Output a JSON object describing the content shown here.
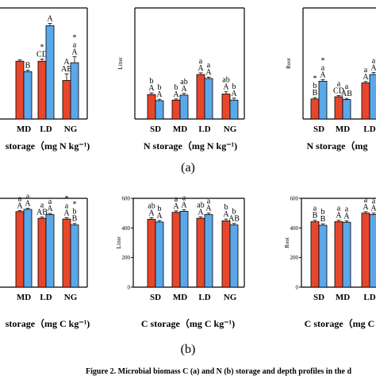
{
  "panel_labels": {
    "a": "(a)",
    "b": "(b)"
  },
  "caption": "Figure 2. Microbial biomass C (a) and N (b) storage and depth profiles in the d",
  "chart_data": [
    {
      "id": "n_left",
      "type": "bar",
      "categories": [
        "MD",
        "LD",
        "NG"
      ],
      "series": [
        {
          "values": [
            [
              7.8,
              6.6,
              8.2
            ]
          ]
        }
      ],
      "values_red": [
        7.8,
        7.8,
        5.2
      ],
      "values_blue": [
        6.4,
        12.6,
        7.6
      ],
      "errors_red": [
        0.2,
        0.3,
        0.9
      ],
      "errors_blue": [
        0.2,
        0.3,
        0.8
      ],
      "ylim": [
        0,
        15
      ],
      "xlabel": "storage（mg N kg⁻¹)",
      "annotations": [
        [
          "B",
          "*\nCD",
          "*\nA"
        ],
        [
          "",
          "A\nAB",
          "*\na\nA"
        ],
        [
          "",
          "*\nAB",
          "*\nB"
        ]
      ],
      "ann_red": [
        "",
        "*\nCD",
        "A\nAB"
      ],
      "ann_blue": [
        "B",
        "A",
        "*\na\nA"
      ],
      "ann_ng_red": "*\nAB",
      "ann_ng_blue": "*\na\nAB"
    },
    {
      "id": "n_litter",
      "type": "bar",
      "categories": [
        "SD",
        "MD",
        "LD",
        "NG"
      ],
      "values_red": [
        8.8,
        6.8,
        16.0,
        9.0
      ],
      "values_blue": [
        6.6,
        8.6,
        14.6,
        6.8
      ],
      "errors_red": [
        0.6,
        0.4,
        0.6,
        0.8
      ],
      "errors_blue": [
        0.5,
        0.6,
        0.5,
        0.7
      ],
      "ylim": [
        0,
        40
      ],
      "ylabel": "Litter",
      "xlabel": "N storage（mg N kg⁻¹)",
      "ann_red": [
        "b\nA",
        "b\nA",
        "a\nA",
        "ab\nA"
      ],
      "ann_blue": [
        "b\nA",
        "ab\nA",
        "a\nA",
        "b\nA"
      ]
    },
    {
      "id": "n_root",
      "type": "bar",
      "categories": [
        "SD",
        "MD",
        "LD"
      ],
      "values_red": [
        7.2,
        8.0,
        13.0
      ],
      "values_blue": [
        13.6,
        7.0,
        16.0
      ],
      "errors_red": [
        0.5,
        0.4,
        0.5
      ],
      "errors_blue": [
        0.6,
        0.4,
        0.7
      ],
      "ylim": [
        0,
        40
      ],
      "ylabel": "Root",
      "xlabel": "N storage（mg",
      "ann_red": [
        "*\nb\nB",
        "a\nCD",
        "a\nA"
      ],
      "ann_blue": [
        "*\na\nA",
        "a\nAB",
        "a\nA"
      ]
    },
    {
      "id": "c_left",
      "type": "bar",
      "categories": [
        "MD",
        "LD",
        "NG"
      ],
      "values_red": [
        510,
        465,
        460
      ],
      "values_blue": [
        525,
        490,
        420
      ],
      "errors_red": [
        8,
        8,
        10
      ],
      "errors_blue": [
        8,
        8,
        10
      ],
      "ylim": [
        0,
        600
      ],
      "xlabel": "storage（mg C kg⁻¹)",
      "ann_red": [
        "a\nA",
        "a\nAB",
        "*\na\nA"
      ],
      "ann_blue": [
        "a\nA",
        "a\nA",
        "*\nb\nB"
      ]
    },
    {
      "id": "c_litter",
      "type": "bar",
      "categories": [
        "SD",
        "MD",
        "LD",
        "NG"
      ],
      "values_red": [
        458,
        505,
        465,
        448
      ],
      "values_blue": [
        440,
        512,
        490,
        420
      ],
      "errors_red": [
        10,
        10,
        10,
        12
      ],
      "errors_blue": [
        10,
        10,
        10,
        10
      ],
      "ylim": [
        0,
        600
      ],
      "ylabel": "Litter",
      "yticks": [
        0,
        200,
        400,
        600
      ],
      "xlabel": "C storage（mg C kg⁻¹)",
      "ann_red": [
        "ab\nA",
        "a\nA",
        "ab\nA",
        "b\nA"
      ],
      "ann_blue": [
        "b\nA",
        "a\nA",
        "a\nA",
        "b\nAB"
      ]
    },
    {
      "id": "c_root",
      "type": "bar",
      "categories": [
        "SD",
        "MD",
        "LD"
      ],
      "values_red": [
        442,
        442,
        500
      ],
      "values_blue": [
        418,
        438,
        490
      ],
      "errors_red": [
        10,
        10,
        10
      ],
      "errors_blue": [
        10,
        10,
        10
      ],
      "ylim": [
        0,
        600
      ],
      "ylabel": "Root",
      "yticks": [
        0,
        200,
        400,
        600
      ],
      "xlabel": "C storage（mg C",
      "ann_red": [
        "a\nB",
        "a\nA",
        "a\nA"
      ],
      "ann_blue": [
        "b\nB",
        "a\nA",
        "a\nA"
      ]
    }
  ]
}
